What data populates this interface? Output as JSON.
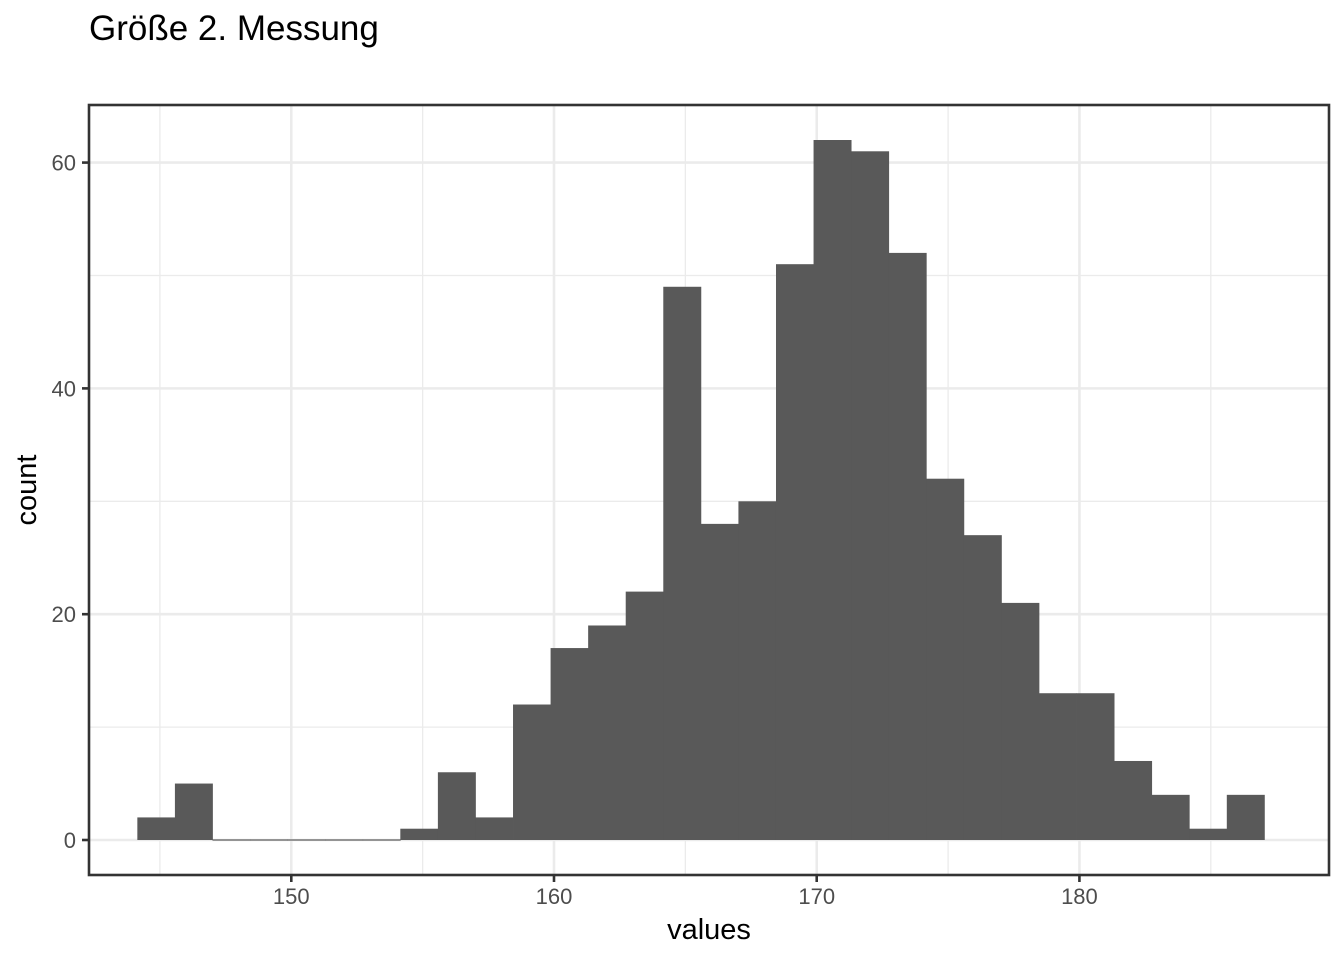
{
  "chart_data": {
    "type": "bar",
    "title": "Größe 2. Messung",
    "xlabel": "values",
    "ylabel": "count",
    "xlim": [
      142.3,
      189.5
    ],
    "ylim": [
      -3.1,
      65.1
    ],
    "xticks": [
      150,
      160,
      170,
      180
    ],
    "yticks": [
      0,
      20,
      40,
      60
    ],
    "xticklabels": [
      "150",
      "160",
      "170",
      "180"
    ],
    "yticklabels": [
      "0",
      "20",
      "40",
      "60"
    ],
    "grid": true,
    "bin_start": 144.14,
    "bin_width": 1.43,
    "values": [
      2,
      5,
      0,
      0,
      0,
      0,
      0,
      1,
      6,
      2,
      12,
      17,
      19,
      22,
      49,
      28,
      30,
      51,
      62,
      61,
      52,
      32,
      27,
      21,
      13,
      13,
      7,
      4,
      1,
      4
    ],
    "bar_color": "#595959"
  }
}
